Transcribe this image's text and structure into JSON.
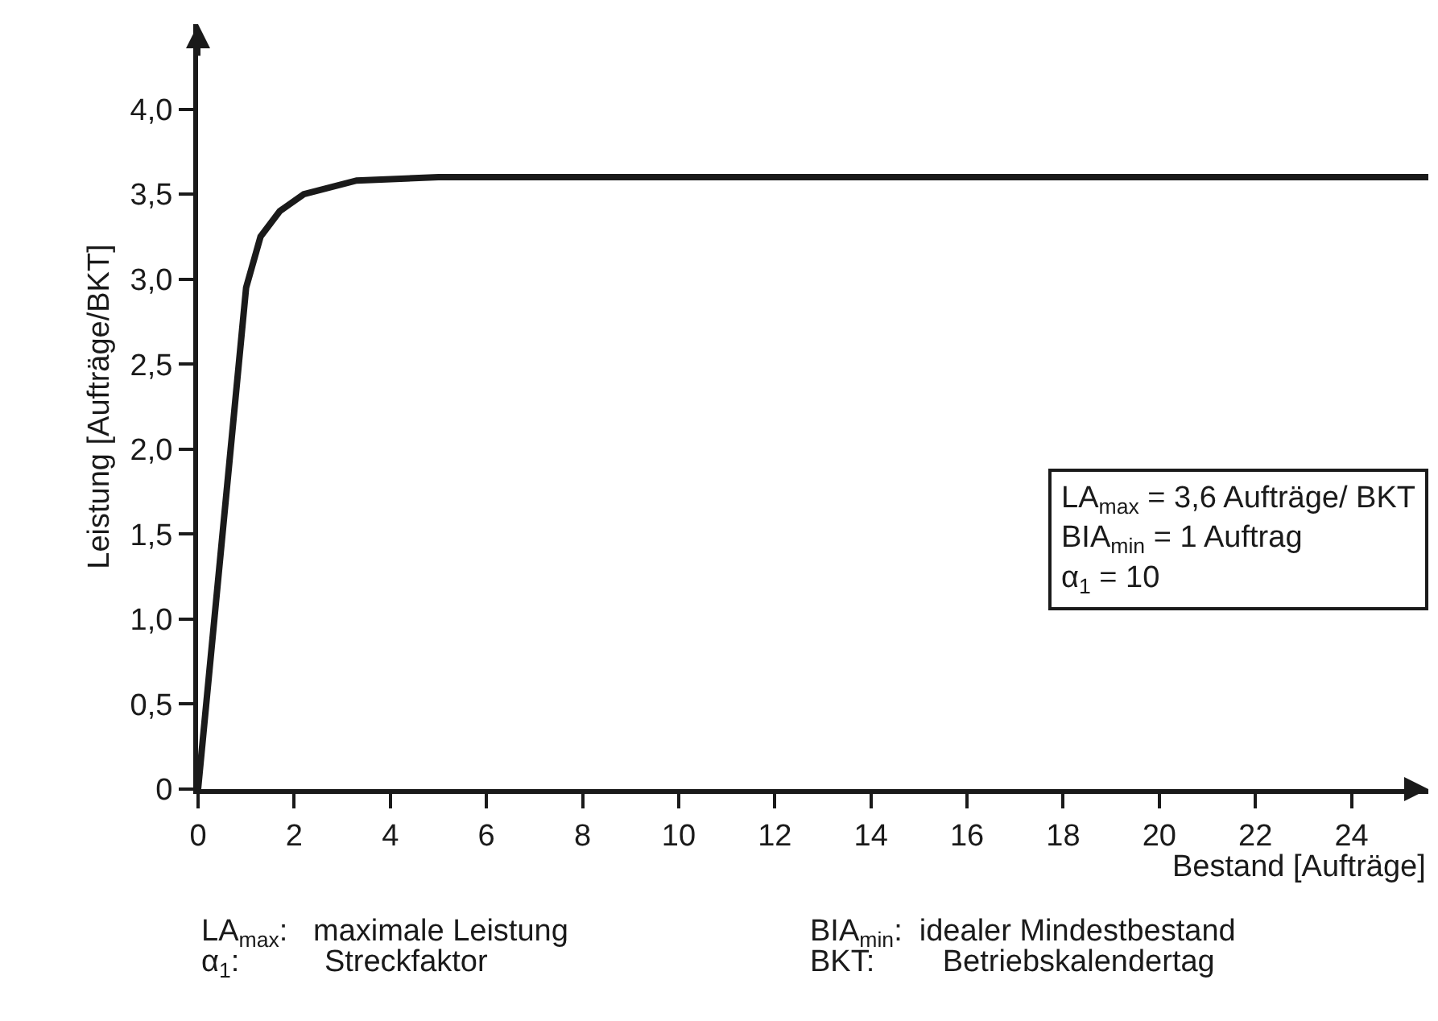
{
  "chart_data": {
    "type": "line",
    "xlabel": "Bestand [Aufträge]",
    "ylabel": "Leistung [Aufträge/BKT]",
    "x": [
      0,
      1,
      1.3,
      1.7,
      2.2,
      3.3,
      5,
      25.6
    ],
    "series": [
      {
        "color": "#1a1a1a",
        "values": [
          0,
          2.95,
          3.25,
          3.4,
          3.5,
          3.58,
          3.6,
          3.6
        ]
      }
    ],
    "xlim": [
      0,
      25.6
    ],
    "ylim": [
      0,
      4.5
    ],
    "xticks": [
      0,
      2,
      4,
      6,
      8,
      10,
      12,
      14,
      16,
      18,
      20,
      22,
      24
    ],
    "yticks": [
      0,
      {
        "value": 0.5,
        "label": "0,5"
      },
      {
        "value": 1,
        "label": "1,0"
      },
      {
        "value": 1.5,
        "label": "1,5"
      },
      {
        "value": 2,
        "label": "2,0"
      },
      {
        "value": 2.5,
        "label": "2,5"
      },
      {
        "value": 3,
        "label": "3,0"
      },
      {
        "value": 3.5,
        "label": "3,5"
      },
      {
        "value": 4,
        "label": "4,0"
      }
    ],
    "legend": false,
    "marker": "none",
    "line_style": "solid",
    "annotations": [
      "LA$_{max}$ = 3,6 Aufträge/ BKT",
      "BIA$_{min}$ = 1 Auftrag",
      "α$_{1}$ = 10",
      "LA$_{max}$:   maximale Leistung",
      "α$_{1}$:          Streckfaktor",
      "BIA$_{min}$:  idealer Mindestbestand",
      "BKT:        Betriebskalendertag"
    ]
  }
}
